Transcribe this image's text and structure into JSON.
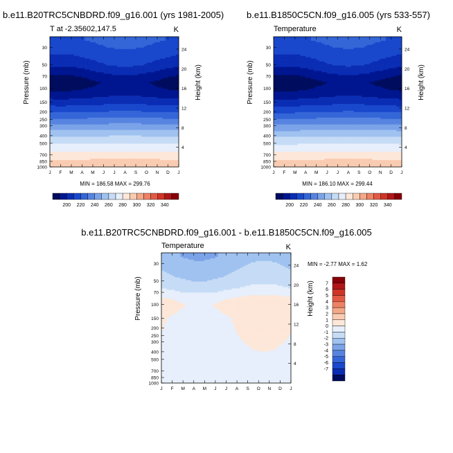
{
  "panels": {
    "left": {
      "title": "b.e11.B20TRC5CNBDRD.f09_g16.001 (yrs 1981-2005)",
      "subtitle": "T at -2.35602,147.5",
      "unit": "K",
      "stats": "MIN = 186.58  MAX = 299.76"
    },
    "right": {
      "title": "b.e11.B1850C5CN.f09_g16.005 (yrs 533-557)",
      "subtitle": "Temperature",
      "unit": "K",
      "stats": "MIN = 186.10  MAX = 299.44"
    },
    "diff": {
      "title": "b.e11.B20TRC5CNBDRD.f09_g16.001 - b.e11.B1850C5CN.f09_g16.005",
      "subtitle": "Temperature",
      "unit": "K",
      "stats": "MIN =  -2.77  MAX =   1.62"
    }
  },
  "colors": {
    "abs_fill": [
      "#000c5e",
      "#001690",
      "#0a2db4",
      "#1a48cc",
      "#3566d8",
      "#5784e0",
      "#7ba3e8",
      "#a0c2f0",
      "#c6dcf6",
      "#e6effb",
      "#fde7d8",
      "#f9ccb2",
      "#f4a888",
      "#ee8264",
      "#e35a44",
      "#cf3526",
      "#b01618",
      "#870008"
    ],
    "abs_bar": [
      "#000c5e",
      "#001690",
      "#0a2db4",
      "#1a48cc",
      "#3566d8",
      "#5784e0",
      "#7ba3e8",
      "#a0c2f0",
      "#c6dcf6",
      "#e6effb",
      "#fde7d8",
      "#f9ccb2",
      "#f4a888",
      "#ee8264",
      "#e35a44",
      "#cf3526",
      "#b01618",
      "#870008"
    ],
    "diff_bar": [
      "#000c5e",
      "#0a2db4",
      "#1a48cc",
      "#3566d8",
      "#5784e0",
      "#7ba3e8",
      "#a0c2f0",
      "#c6dcf6",
      "#e6effb",
      "#fde7d8",
      "#f9ccb2",
      "#f4a888",
      "#ee8264",
      "#e35a44",
      "#cf3526",
      "#b01618",
      "#870008"
    ]
  },
  "chart_data": [
    {
      "type": "heatmap",
      "panel": "left",
      "title": "b.e11.B20TRC5CNBDRD.f09_g16.001 (yrs 1981-2005)",
      "subtitle": "T at -2.35602,147.5",
      "xlabel": "",
      "ylabel": "Pressure (mb)",
      "ylabel_right": "Height (km)",
      "x_ticks": [
        "J",
        "F",
        "M",
        "A",
        "M",
        "J",
        "J",
        "A",
        "S",
        "O",
        "N",
        "D",
        "J"
      ],
      "y_ticks_left": [
        30,
        50,
        70,
        100,
        150,
        200,
        250,
        300,
        400,
        500,
        700,
        850,
        1000
      ],
      "y_ticks_right": [
        24,
        20,
        16,
        12,
        8,
        4
      ],
      "ylim": [
        1000,
        22
      ],
      "y_scale": "log",
      "colorbar_labels": [
        200,
        220,
        240,
        260,
        280,
        300,
        320,
        340
      ],
      "levels": [
        190,
        200,
        210,
        220,
        230,
        240,
        250,
        260,
        270,
        280,
        290,
        300,
        310,
        320,
        330,
        340,
        350
      ],
      "profile": {
        "p": [
          1000,
          900,
          800,
          700,
          600,
          500,
          400,
          300,
          250,
          200,
          150,
          120,
          100,
          85,
          70,
          60,
          50,
          40,
          30,
          24
        ],
        "T": [
          299.0,
          295.5,
          290.0,
          284.0,
          277.0,
          269.5,
          259.0,
          243.0,
          232.5,
          220.0,
          206.0,
          196.0,
          191.0,
          188.0,
          193.5,
          200.0,
          207.0,
          212.0,
          218.0,
          221.0
        ]
      },
      "seasonal_amp": {
        "p": [
          1000,
          600,
          300,
          150,
          100,
          80,
          60,
          40,
          30,
          24
        ],
        "amp": [
          0.7,
          0.5,
          0.7,
          1.5,
          4.0,
          5.0,
          5.5,
          4.0,
          3.0,
          2.5
        ]
      },
      "min": 186.58,
      "max": 299.76
    },
    {
      "type": "heatmap",
      "panel": "right",
      "title": "b.e11.B1850C5CN.f09_g16.005 (yrs 533-557)",
      "subtitle": "Temperature",
      "xlabel": "",
      "ylabel": "Pressure (mb)",
      "ylabel_right": "Height (km)",
      "x_ticks": [
        "J",
        "F",
        "M",
        "A",
        "M",
        "J",
        "J",
        "A",
        "S",
        "O",
        "N",
        "D",
        "J"
      ],
      "y_ticks_left": [
        30,
        50,
        70,
        100,
        150,
        200,
        250,
        300,
        400,
        500,
        700,
        850,
        1000
      ],
      "y_ticks_right": [
        24,
        20,
        16,
        12,
        8,
        4
      ],
      "ylim": [
        1000,
        22
      ],
      "y_scale": "log",
      "colorbar_labels": [
        200,
        220,
        240,
        260,
        280,
        300,
        320,
        340
      ],
      "levels": [
        190,
        200,
        210,
        220,
        230,
        240,
        250,
        260,
        270,
        280,
        290,
        300,
        310,
        320,
        330,
        340,
        350
      ],
      "profile": {
        "p": [
          1000,
          900,
          800,
          700,
          600,
          500,
          400,
          300,
          250,
          200,
          150,
          120,
          100,
          85,
          70,
          60,
          50,
          40,
          30,
          24
        ],
        "T": [
          298.7,
          295.2,
          289.7,
          283.7,
          276.7,
          269.2,
          258.7,
          242.7,
          232.2,
          219.7,
          205.7,
          195.7,
          190.7,
          187.7,
          193.2,
          199.7,
          206.7,
          211.7,
          217.7,
          220.7
        ]
      },
      "seasonal_amp": {
        "p": [
          1000,
          600,
          300,
          150,
          100,
          80,
          60,
          40,
          30,
          24
        ],
        "amp": [
          0.7,
          0.5,
          0.7,
          1.5,
          4.0,
          5.0,
          5.5,
          4.0,
          3.0,
          2.5
        ]
      },
      "min": 186.1,
      "max": 299.44
    },
    {
      "type": "heatmap",
      "panel": "diff",
      "title": "b.e11.B20TRC5CNBDRD.f09_g16.001 - b.e11.B1850C5CN.f09_g16.005",
      "subtitle": "Temperature",
      "xlabel": "",
      "ylabel": "Pressure (mb)",
      "ylabel_right": "Height (km)",
      "x_ticks": [
        "J",
        "F",
        "M",
        "A",
        "M",
        "J",
        "J",
        "A",
        "S",
        "O",
        "N",
        "D",
        "J"
      ],
      "y_ticks_left": [
        30,
        50,
        70,
        100,
        150,
        200,
        250,
        300,
        400,
        500,
        700,
        850,
        1000
      ],
      "y_ticks_right": [
        24,
        20,
        16,
        12,
        8,
        4
      ],
      "ylim": [
        1000,
        22
      ],
      "y_scale": "log",
      "colorbar_labels": [
        7,
        6,
        5,
        4,
        3,
        2,
        1,
        0,
        -1,
        -2,
        -3,
        -4,
        -5,
        -6,
        -7
      ],
      "diff_profile": {
        "p": [
          1000,
          400,
          150,
          120,
          100,
          85,
          70,
          60,
          50,
          40,
          30,
          24
        ],
        "d": [
          0.4,
          0.4,
          0.5,
          0.7,
          0.9,
          0.6,
          -0.2,
          -0.7,
          -1.1,
          -1.5,
          -1.9,
          -2.2
        ]
      },
      "diff_seasonal": {
        "p": [
          1000,
          150,
          100,
          80,
          60,
          45,
          30,
          24
        ],
        "amp": [
          0.0,
          0.2,
          0.5,
          0.4,
          0.4,
          0.45,
          0.5,
          0.5
        ]
      },
      "min": -2.77,
      "max": 1.62
    }
  ]
}
